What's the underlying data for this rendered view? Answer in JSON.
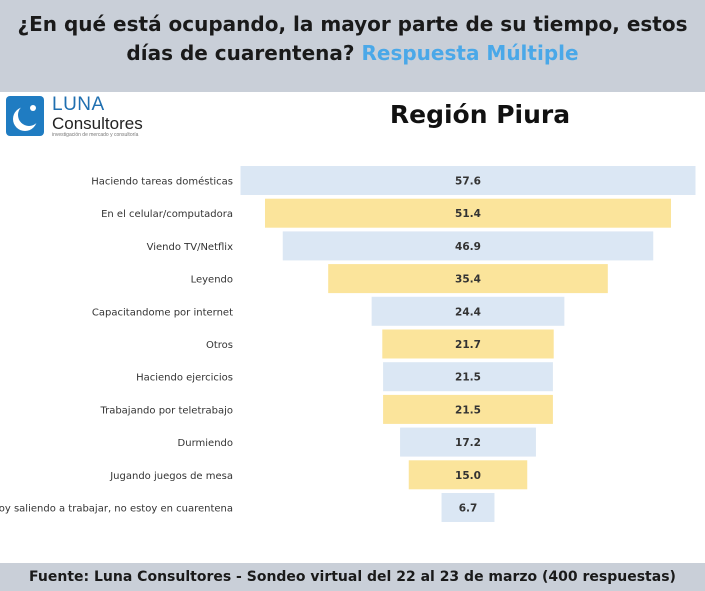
{
  "header": {
    "question": "¿En qué está ocupando, la mayor parte de su tiempo, estos días de cuarentena?",
    "highlight": "Respuesta Múltiple",
    "accent_color": "#4aa8e8"
  },
  "logo": {
    "name_line1": "LUNA",
    "name_line2": "Consultores",
    "tagline": "investigación de mercado y consultoría",
    "icon": "luna-logo-icon"
  },
  "footer": {
    "text": "Fuente: Luna Consultores - Sondeo virtual del 22 al 23 de marzo (400 respuestas)"
  },
  "chart_data": {
    "type": "bar",
    "orientation": "horizontal-funnel",
    "title": "Región Piura",
    "categories": [
      "Haciendo tareas domésticas",
      "En el celular/computadora",
      "Viendo TV/Netflix",
      "Leyendo",
      "Capacitandome por internet",
      "Otros",
      "Haciendo ejercicios",
      "Trabajando por teletrabajo",
      "Durmiendo",
      "Jugando juegos de mesa",
      "Estoy saliendo a trabajar, no estoy en cuarentena"
    ],
    "values": [
      57.6,
      51.4,
      46.9,
      35.4,
      24.4,
      21.7,
      21.5,
      21.5,
      17.2,
      15.0,
      6.7
    ],
    "value_labels": [
      "57.6",
      "51.4",
      "46.9",
      "35.4",
      "24.4",
      "21.7",
      "21.5",
      "21.5",
      "17.2",
      "15.0",
      "6.7"
    ],
    "colors": [
      "#dbe7f4",
      "#fbe49b"
    ],
    "xlim": [
      0,
      57.6
    ]
  }
}
